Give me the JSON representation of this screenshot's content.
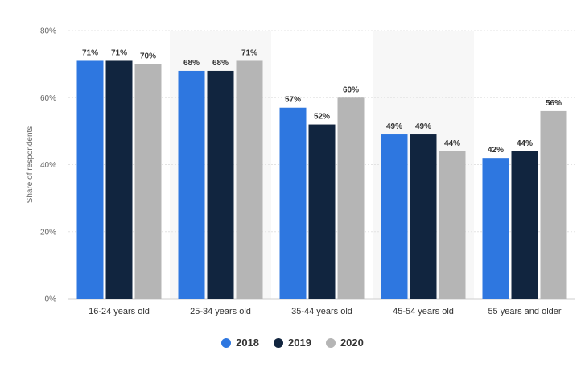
{
  "chart_data": {
    "type": "bar",
    "categories": [
      "16-24 years old",
      "25-34 years old",
      "35-44 years old",
      "45-54 years old",
      "55 years and older"
    ],
    "series": [
      {
        "name": "2018",
        "color": "#2e77e0",
        "values": [
          71,
          68,
          57,
          49,
          42
        ]
      },
      {
        "name": "2019",
        "color": "#11253f",
        "values": [
          71,
          68,
          52,
          49,
          44
        ]
      },
      {
        "name": "2020",
        "color": "#b5b5b5",
        "values": [
          70,
          71,
          60,
          44,
          56
        ]
      }
    ],
    "ylabel": "Share of respondents",
    "yticks": [
      "0%",
      "20%",
      "40%",
      "60%",
      "80%"
    ],
    "ylim": [
      0,
      80
    ],
    "value_suffix": "%",
    "grid": true,
    "legend_position": "bottom-center"
  }
}
